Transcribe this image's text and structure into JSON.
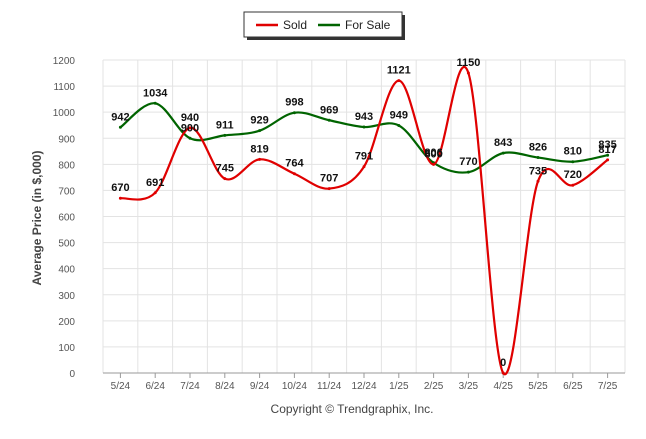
{
  "chart_data": {
    "type": "line",
    "categories": [
      "5/24",
      "6/24",
      "7/24",
      "8/24",
      "9/24",
      "10/24",
      "11/24",
      "12/24",
      "1/25",
      "2/25",
      "3/25",
      "4/25",
      "5/25",
      "6/25",
      "7/25"
    ],
    "series": [
      {
        "name": "Sold",
        "color": "#e00000",
        "values": [
          670,
          691,
          940,
          745,
          819,
          764,
          707,
          791,
          1121,
          800,
          1150,
          0,
          735,
          720,
          817
        ]
      },
      {
        "name": "For Sale",
        "color": "#006400",
        "values": [
          942,
          1034,
          900,
          911,
          929,
          998,
          969,
          943,
          949,
          806,
          770,
          843,
          826,
          810,
          835
        ]
      }
    ],
    "ylabel": "Average Price (in $,000)",
    "yticks": [
      0,
      100,
      200,
      300,
      400,
      500,
      600,
      700,
      800,
      900,
      1000,
      1100,
      1200
    ],
    "ylim": [
      0,
      1200
    ],
    "grid": true,
    "legend_position": "top-center",
    "credit": "Copyright © Trendgraphix, Inc."
  }
}
